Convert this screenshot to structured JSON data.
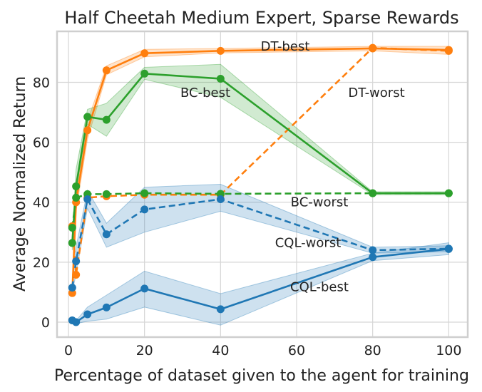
{
  "chart_data": {
    "type": "line",
    "title": "Half Cheetah Medium Expert, Sparse Rewards",
    "xlabel": "Percentage of dataset given to the agent for training",
    "ylabel": "Average Normalized Return",
    "xlim": [
      -3,
      105
    ],
    "ylim": [
      -5,
      97
    ],
    "xticks": [
      0,
      20,
      40,
      60,
      80,
      100
    ],
    "yticks": [
      0,
      20,
      40,
      60,
      80
    ],
    "grid": true,
    "colors": {
      "DT": "#ff7f0e",
      "BC": "#2ca02c",
      "CQL": "#1f77b4"
    },
    "series": [
      {
        "name": "DT-best",
        "family": "DT",
        "style": "solid",
        "x": [
          1,
          2,
          5,
          10,
          20,
          40,
          80,
          100
        ],
        "y": [
          9.7,
          40,
          64,
          84,
          89.7,
          90.5,
          91.3,
          90.8
        ],
        "band": [
          [
            9,
            10.5
          ],
          [
            37,
            43
          ],
          [
            61,
            67
          ],
          [
            82.5,
            85.5
          ],
          [
            88.5,
            91
          ],
          [
            89.8,
            91.3
          ],
          [
            90.5,
            92
          ],
          [
            89.3,
            92
          ]
        ]
      },
      {
        "name": "DT-worst",
        "family": "DT",
        "style": "dashed",
        "x": [
          1,
          2,
          5,
          10,
          20,
          40,
          80,
          100
        ],
        "y": [
          32,
          15.8,
          41.5,
          42,
          42.5,
          42.5,
          91.5,
          90.5
        ],
        "band": null
      },
      {
        "name": "BC-best",
        "family": "BC",
        "style": "solid",
        "x": [
          1,
          2,
          5,
          10,
          20,
          40,
          80,
          100
        ],
        "y": [
          26.4,
          45.3,
          68.5,
          67.5,
          82.9,
          81.2,
          43,
          43
        ],
        "band": [
          [
            24,
            29
          ],
          [
            39,
            51
          ],
          [
            66,
            71
          ],
          [
            62,
            73
          ],
          [
            81,
            85
          ],
          [
            75,
            86
          ],
          [
            42.5,
            43.5
          ],
          [
            42.5,
            43.5
          ]
        ]
      },
      {
        "name": "BC-worst",
        "family": "BC",
        "style": "dashed",
        "x": [
          1,
          2,
          5,
          10,
          20,
          40,
          80,
          100
        ],
        "y": [
          31.5,
          41.5,
          42.7,
          42.7,
          43,
          42.8,
          43,
          43
        ],
        "band": null
      },
      {
        "name": "CQL-best",
        "family": "CQL",
        "style": "solid",
        "x": [
          1,
          2,
          5,
          10,
          20,
          40,
          80,
          100
        ],
        "y": [
          0.6,
          0,
          2.6,
          4.9,
          11.2,
          4.3,
          21.7,
          24.4
        ],
        "band": [
          [
            0,
            1.3
          ],
          [
            -0.5,
            0.5
          ],
          [
            0.3,
            5
          ],
          [
            1,
            9
          ],
          [
            5,
            17
          ],
          [
            -1,
            9.5
          ],
          [
            20.5,
            23
          ],
          [
            22.5,
            26.5
          ]
        ]
      },
      {
        "name": "CQL-worst",
        "family": "CQL",
        "style": "dashed",
        "x": [
          1,
          2,
          5,
          10,
          20,
          40,
          80,
          100
        ],
        "y": [
          11.5,
          20.3,
          41,
          29.3,
          37.6,
          41,
          24,
          24.5
        ],
        "band": [
          [
            10,
            13
          ],
          [
            16,
            25
          ],
          [
            38,
            44
          ],
          [
            25,
            33
          ],
          [
            30,
            45
          ],
          [
            37,
            46
          ],
          [
            23,
            25
          ],
          [
            23.5,
            25.5
          ]
        ]
      }
    ],
    "annotations": [
      {
        "text": "DT-best",
        "x": 57,
        "y": 92
      },
      {
        "text": "DT-worst",
        "x": 81,
        "y": 76.5
      },
      {
        "text": "BC-best",
        "x": 36,
        "y": 76.5
      },
      {
        "text": "BC-worst",
        "x": 66,
        "y": 40
      },
      {
        "text": "CQL-worst",
        "x": 63,
        "y": 26.5
      },
      {
        "text": "CQL-best",
        "x": 66,
        "y": 11.8
      }
    ]
  }
}
